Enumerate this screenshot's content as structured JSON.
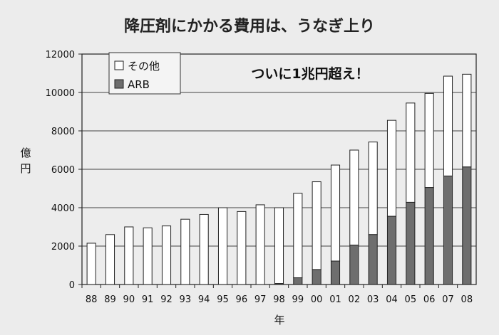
{
  "chart_data": {
    "type": "bar",
    "stacked": true,
    "title": "降圧剤にかかる費用は、うなぎ上り",
    "annotation": "ついに1兆円超え！",
    "xlabel": "年",
    "ylabel": "億円",
    "ylim": [
      0,
      12000
    ],
    "yticks": [
      0,
      2000,
      4000,
      6000,
      8000,
      10000,
      12000
    ],
    "grid": true,
    "legend_position": "top-left",
    "categories": [
      "88",
      "89",
      "90",
      "91",
      "92",
      "93",
      "94",
      "95",
      "96",
      "97",
      "98",
      "99",
      "00",
      "01",
      "02",
      "03",
      "04",
      "05",
      "06",
      "07",
      "08"
    ],
    "series": [
      {
        "name": "ARB",
        "color": "#6e6e6e",
        "values": [
          0,
          0,
          0,
          0,
          0,
          0,
          0,
          0,
          0,
          0,
          50,
          350,
          780,
          1220,
          2050,
          2600,
          3550,
          4280,
          5050,
          5650,
          6120
        ]
      },
      {
        "name": "その他",
        "color": "#ffffff",
        "values": [
          2150,
          2600,
          3000,
          2950,
          3050,
          3400,
          3650,
          4000,
          3800,
          4150,
          3950,
          4400,
          4570,
          5000,
          4950,
          4820,
          5000,
          5170,
          4900,
          5200,
          4830
        ]
      }
    ]
  }
}
